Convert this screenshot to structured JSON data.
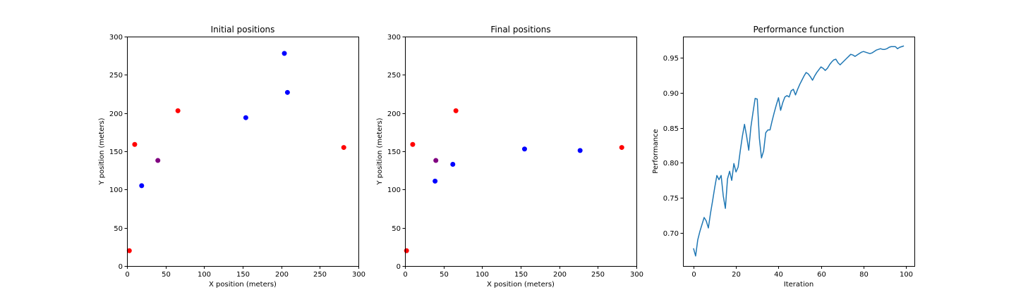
{
  "chart_data": [
    {
      "type": "scatter",
      "title": "Initial positions",
      "xlabel": "X position (meters)",
      "ylabel": "Y position (meters)",
      "xlim": [
        0,
        300
      ],
      "ylim": [
        0,
        300
      ],
      "xticks": [
        0,
        50,
        100,
        150,
        200,
        250,
        300
      ],
      "yticks": [
        0,
        50,
        100,
        150,
        200,
        250,
        300
      ],
      "grid": false,
      "points": [
        {
          "x": 3,
          "y": 20,
          "color": "#ff0000"
        },
        {
          "x": 10,
          "y": 159,
          "color": "#ff0000"
        },
        {
          "x": 66,
          "y": 203,
          "color": "#ff0000"
        },
        {
          "x": 281,
          "y": 155,
          "color": "#ff0000"
        },
        {
          "x": 40,
          "y": 138,
          "color": "#800080"
        },
        {
          "x": 19,
          "y": 105,
          "color": "#0000ff"
        },
        {
          "x": 154,
          "y": 194,
          "color": "#0000ff"
        },
        {
          "x": 204,
          "y": 278,
          "color": "#0000ff"
        },
        {
          "x": 208,
          "y": 227,
          "color": "#0000ff"
        }
      ]
    },
    {
      "type": "scatter",
      "title": "Final positions",
      "xlabel": "X position (meters)",
      "ylabel": "Y position (meters)",
      "xlim": [
        0,
        300
      ],
      "ylim": [
        0,
        300
      ],
      "xticks": [
        0,
        50,
        100,
        150,
        200,
        250,
        300
      ],
      "yticks": [
        0,
        50,
        100,
        150,
        200,
        250,
        300
      ],
      "grid": false,
      "points": [
        {
          "x": 2,
          "y": 20,
          "color": "#ff0000"
        },
        {
          "x": 10,
          "y": 159,
          "color": "#ff0000"
        },
        {
          "x": 66,
          "y": 203,
          "color": "#ff0000"
        },
        {
          "x": 281,
          "y": 155,
          "color": "#ff0000"
        },
        {
          "x": 40,
          "y": 138,
          "color": "#800080"
        },
        {
          "x": 39,
          "y": 111,
          "color": "#0000ff"
        },
        {
          "x": 62,
          "y": 133,
          "color": "#0000ff"
        },
        {
          "x": 155,
          "y": 153,
          "color": "#0000ff"
        },
        {
          "x": 227,
          "y": 151,
          "color": "#0000ff"
        }
      ]
    },
    {
      "type": "line",
      "title": "Performance function",
      "xlabel": "Iteration",
      "ylabel": "Performance",
      "xlim": [
        -4.95,
        103.95
      ],
      "ylim": [
        0.6527,
        0.9803
      ],
      "xticks": [
        0,
        20,
        40,
        60,
        80,
        100
      ],
      "yticks": [
        0.7,
        0.75,
        0.8,
        0.85,
        0.9,
        0.95
      ],
      "ytick_labels": [
        "0.70",
        "0.75",
        "0.80",
        "0.85",
        "0.90",
        "0.95"
      ],
      "grid": false,
      "series": [
        {
          "color": "#1f77b4",
          "x": [
            0,
            1,
            2,
            3,
            4,
            5,
            6,
            7,
            8,
            9,
            10,
            11,
            12,
            13,
            14,
            15,
            16,
            17,
            18,
            19,
            20,
            21,
            22,
            23,
            24,
            25,
            26,
            27,
            28,
            29,
            30,
            31,
            32,
            33,
            34,
            35,
            36,
            37,
            38,
            39,
            40,
            41,
            42,
            43,
            44,
            45,
            46,
            47,
            48,
            49,
            50,
            51,
            52,
            53,
            54,
            55,
            56,
            57,
            58,
            59,
            60,
            61,
            62,
            63,
            64,
            65,
            66,
            67,
            68,
            69,
            70,
            71,
            72,
            73,
            74,
            75,
            76,
            77,
            78,
            79,
            80,
            81,
            82,
            83,
            84,
            85,
            86,
            87,
            88,
            89,
            90,
            91,
            92,
            93,
            94,
            95,
            96,
            97,
            98,
            99
          ],
          "values": [
            0.678,
            0.667,
            0.69,
            0.702,
            0.712,
            0.722,
            0.717,
            0.707,
            0.728,
            0.746,
            0.765,
            0.782,
            0.776,
            0.782,
            0.753,
            0.735,
            0.777,
            0.788,
            0.775,
            0.799,
            0.787,
            0.794,
            0.817,
            0.838,
            0.855,
            0.838,
            0.818,
            0.851,
            0.872,
            0.892,
            0.891,
            0.835,
            0.807,
            0.817,
            0.843,
            0.847,
            0.847,
            0.86,
            0.872,
            0.883,
            0.893,
            0.875,
            0.886,
            0.894,
            0.896,
            0.894,
            0.903,
            0.905,
            0.897,
            0.905,
            0.912,
            0.918,
            0.924,
            0.929,
            0.927,
            0.923,
            0.918,
            0.924,
            0.929,
            0.933,
            0.937,
            0.935,
            0.932,
            0.935,
            0.94,
            0.944,
            0.947,
            0.948,
            0.943,
            0.94,
            0.943,
            0.946,
            0.949,
            0.952,
            0.955,
            0.954,
            0.952,
            0.954,
            0.956,
            0.958,
            0.959,
            0.958,
            0.957,
            0.956,
            0.957,
            0.959,
            0.961,
            0.962,
            0.963,
            0.962,
            0.962,
            0.963,
            0.965,
            0.966,
            0.966,
            0.966,
            0.963,
            0.965,
            0.966,
            0.967
          ]
        }
      ]
    }
  ]
}
